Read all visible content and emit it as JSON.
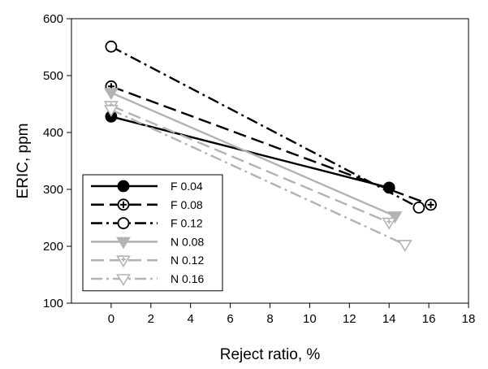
{
  "chart_data": {
    "type": "line",
    "title": "",
    "xlabel": "Reject ratio, %",
    "ylabel": "ERIC, ppm",
    "xlim": [
      -2,
      18
    ],
    "ylim": [
      100,
      600
    ],
    "x_ticks": [
      0,
      2,
      4,
      6,
      8,
      10,
      12,
      14,
      16,
      18
    ],
    "y_ticks": [
      100,
      200,
      300,
      400,
      500,
      600
    ],
    "grid": false,
    "legend_position": "bottom-left",
    "series": [
      {
        "name": "F 0.04",
        "color": "#000000",
        "dash": "solid",
        "marker": "filled-circle",
        "x": [
          0,
          14
        ],
        "y": [
          428,
          303
        ]
      },
      {
        "name": "F 0.08",
        "color": "#000000",
        "dash": "dash",
        "marker": "circle-plus",
        "x": [
          0,
          16.1
        ],
        "y": [
          481,
          273
        ]
      },
      {
        "name": "F 0.12",
        "color": "#000000",
        "dash": "dashdot",
        "marker": "open-circle",
        "x": [
          0,
          15.5
        ],
        "y": [
          551,
          268
        ]
      },
      {
        "name": "N 0.08",
        "color": "#b3b3b3",
        "dash": "solid",
        "marker": "filled-triangle-down",
        "x": [
          0,
          14.3
        ],
        "y": [
          470,
          253
        ]
      },
      {
        "name": "N 0.12",
        "color": "#b3b3b3",
        "dash": "dash",
        "marker": "triangle-down-plus",
        "x": [
          0,
          14
        ],
        "y": [
          447,
          242
        ]
      },
      {
        "name": "N 0.16",
        "color": "#b3b3b3",
        "dash": "dashdot",
        "marker": "open-triangle-down",
        "x": [
          0,
          14.8
        ],
        "y": [
          440,
          203
        ]
      }
    ]
  }
}
